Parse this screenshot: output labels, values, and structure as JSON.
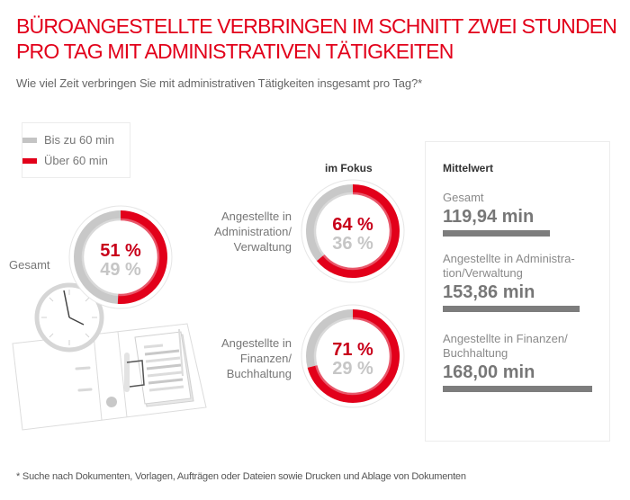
{
  "header": {
    "title_line1": "BÜROANGESTELLTE VERBRINGEN IM SCHNITT ZWEI STUNDEN",
    "title_line2": "PRO TAG MIT ADMINISTRATIVEN TÄTIGKEITEN",
    "subtitle": "Wie viel Zeit verbringen Sie mit administrativen Tätigkeiten insgesamt pro Tag?*"
  },
  "colors": {
    "accent": "#e2001a",
    "accent_light": "#e8576a",
    "grey": "#c8c8c8",
    "grey_light": "#d9d9d9",
    "bar": "#7d7d7d"
  },
  "icons": {
    "illustration": "clock-and-binder-illustration"
  },
  "chart_data": [
    {
      "type": "pie",
      "title": "Gesamt",
      "legend": [
        "Bis zu 60 min",
        "Über 60 min"
      ],
      "legend_position": "top-left",
      "categories": [
        "Über 60 min",
        "Bis zu 60 min"
      ],
      "values": [
        51,
        49
      ],
      "labels": [
        "51 %",
        "49 %"
      ]
    },
    {
      "type": "pie",
      "group_heading": "im Fokus",
      "title_lines": [
        "Angestellte in",
        "Administration/",
        "Verwaltung"
      ],
      "categories": [
        "Über 60 min",
        "Bis zu 60 min"
      ],
      "values": [
        64,
        36
      ],
      "labels": [
        "64 %",
        "36 %"
      ]
    },
    {
      "type": "pie",
      "group_heading": "im Fokus",
      "title_lines": [
        "Angestellte in",
        "Finanzen/",
        "Buchhaltung"
      ],
      "categories": [
        "Über 60 min",
        "Bis zu 60 min"
      ],
      "values": [
        71,
        29
      ],
      "labels": [
        "71 %",
        "29 %"
      ]
    },
    {
      "type": "bar",
      "title": "Mittelwert",
      "unit": "min",
      "categories": [
        "Gesamt",
        "Angestellte in Administration/Verwaltung",
        "Angestellte in Finanzen/Buchhaltung"
      ],
      "label_lines": [
        [
          "Gesamt"
        ],
        [
          "Angestellte in Administra-",
          "tion/Verwaltung"
        ],
        [
          "Angestellte in Finanzen/",
          "Buchhaltung"
        ]
      ],
      "values": [
        119.94,
        153.86,
        168.0
      ],
      "value_labels": [
        "119,94 min",
        "153,86 min",
        "168,00 min"
      ]
    }
  ],
  "footnote": "* Suche nach Dokumenten, Vorlagen, Aufträgen oder Dateien sowie Drucken und Ablage von Dokumenten"
}
